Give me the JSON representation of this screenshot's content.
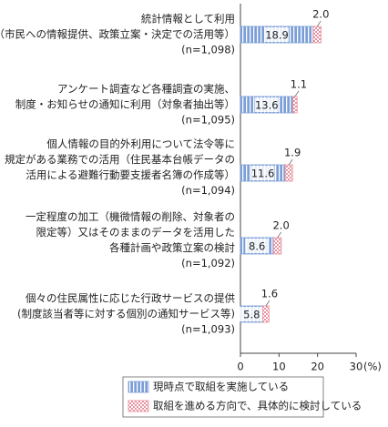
{
  "chart_data": {
    "type": "stacked-barh",
    "categories": [
      [
        "統計情報として利用",
        "（市民への情報提供、政策立案・決定での活用等）",
        "(n=1,098)"
      ],
      [
        "アンケート調査など各種調査の実施、",
        "制度・お知らせの通知に利用（対象者抽出等）",
        "(n=1,095)"
      ],
      [
        "個人情報の目的外利用について法令等に",
        "規定がある業務での活用（住民基本台帳データの",
        "活用による避難行動要支援者名簿の作成等）",
        "(n=1,094)"
      ],
      [
        "一定程度の加工（機微情報の削除、対象者の",
        "限定等）又はそのままのデータを活用した",
        "各種計画や政策立案の検討",
        "(n=1,092)"
      ],
      [
        "個々の住民属性に応じた行政サービスの提供",
        "(制度該当者等に対する個別の通知サービス等)",
        "(n=1,093)"
      ]
    ],
    "series": [
      {
        "name": "現時点で取組を実施している",
        "color": "#7b9ed6",
        "values": [
          18.9,
          13.6,
          11.6,
          8.6,
          5.8
        ]
      },
      {
        "name": "取組を進める方向で、具体的に検討している",
        "color": "#e8929f",
        "values": [
          2.0,
          1.1,
          1.9,
          2.0,
          1.6
        ],
        "value_labels": [
          "2.0",
          "1.1",
          "1.9",
          "2.0",
          "1.6"
        ]
      }
    ],
    "xlim": [
      0,
      30
    ],
    "xticks": [
      0,
      10,
      20,
      30
    ],
    "x_label": "(%)"
  }
}
